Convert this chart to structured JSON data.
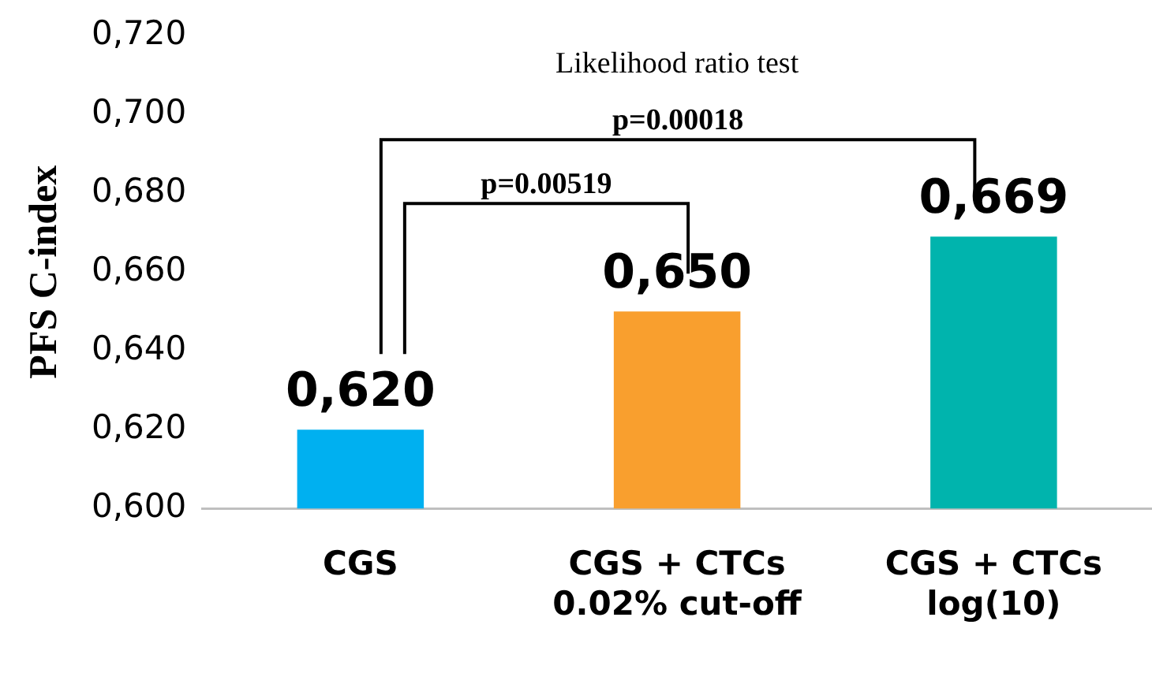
{
  "chart_data": {
    "type": "bar",
    "ylabel": "PFS C-index",
    "categories": [
      "CGS",
      "CGS + CTCs\n0.02% cut-off",
      "CGS + CTCs\nlog(10)"
    ],
    "values": [
      0.62,
      0.65,
      0.669
    ],
    "colors": [
      "#00b0f0",
      "#f99f2e",
      "#00b4ad"
    ],
    "value_labels": [
      "0,620",
      "0,650",
      "0,669"
    ],
    "ylim": [
      0.6,
      0.72
    ],
    "yticks": [
      {
        "value": 0.6,
        "label": "0,600"
      },
      {
        "value": 0.62,
        "label": "0,620"
      },
      {
        "value": 0.64,
        "label": "0,640"
      },
      {
        "value": 0.66,
        "label": "0,660"
      },
      {
        "value": 0.68,
        "label": "0,680"
      },
      {
        "value": 0.7,
        "label": "0,700"
      },
      {
        "value": 0.72,
        "label": "0,720"
      }
    ],
    "grid": false,
    "legend": false,
    "annotations": [
      "Likelihood ratio test",
      "p=0.00018",
      "p=0.00519"
    ]
  }
}
